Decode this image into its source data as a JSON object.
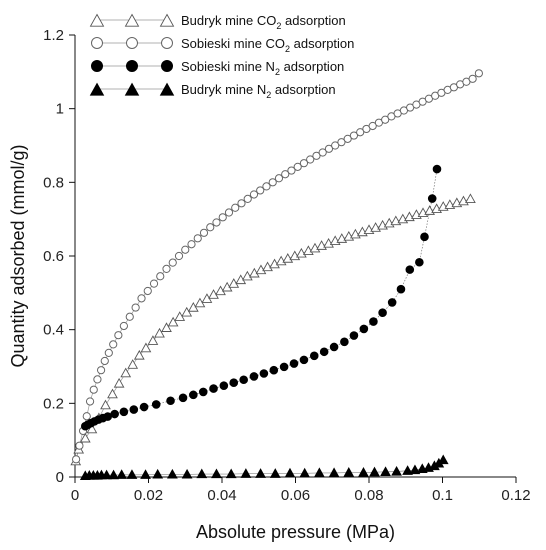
{
  "chart_data": {
    "type": "scatter",
    "title": "",
    "xlabel": "Absolute pressure (MPa)",
    "ylabel": "Quantity adsorbed (mmol/g)",
    "xlim": [
      0,
      0.12
    ],
    "ylim": [
      0,
      1.2
    ],
    "xticks": [
      0,
      0.02,
      0.04,
      0.06,
      0.08,
      0.1,
      0.12
    ],
    "xtick_labels": [
      "0",
      "0.02",
      "0.04",
      "0.06",
      "0.08",
      "0.1",
      "0.12"
    ],
    "yticks": [
      0,
      0.2,
      0.4,
      0.6,
      0.8,
      1,
      1.2
    ],
    "ytick_labels": [
      "0",
      "0.2",
      "0.4",
      "0.6",
      "0.8",
      "1",
      "1.2"
    ],
    "grid": false,
    "legend_position": "top-left",
    "series": [
      {
        "name": "Budryk mine CO2 adsorption",
        "legend_main": "Budryk mine CO",
        "legend_sub": "2",
        "legend_tail": " adsorption",
        "marker": "triangle-open",
        "points": [
          [
            0.0002,
            0.043
          ],
          [
            0.001,
            0.075
          ],
          [
            0.0028,
            0.105
          ],
          [
            0.0046,
            0.13
          ],
          [
            0.0065,
            0.16
          ],
          [
            0.0083,
            0.195
          ],
          [
            0.0102,
            0.225
          ],
          [
            0.012,
            0.254
          ],
          [
            0.0138,
            0.282
          ],
          [
            0.0157,
            0.305
          ],
          [
            0.0175,
            0.33
          ],
          [
            0.0193,
            0.35
          ],
          [
            0.0212,
            0.37
          ],
          [
            0.023,
            0.39
          ],
          [
            0.0249,
            0.405
          ],
          [
            0.0267,
            0.42
          ],
          [
            0.0285,
            0.435
          ],
          [
            0.0304,
            0.447
          ],
          [
            0.0322,
            0.46
          ],
          [
            0.034,
            0.472
          ],
          [
            0.0359,
            0.484
          ],
          [
            0.0377,
            0.495
          ],
          [
            0.0396,
            0.505
          ],
          [
            0.0414,
            0.515
          ],
          [
            0.0432,
            0.525
          ],
          [
            0.0451,
            0.535
          ],
          [
            0.0469,
            0.545
          ],
          [
            0.0488,
            0.553
          ],
          [
            0.0506,
            0.562
          ],
          [
            0.0524,
            0.57
          ],
          [
            0.0543,
            0.578
          ],
          [
            0.0561,
            0.586
          ],
          [
            0.0579,
            0.593
          ],
          [
            0.0598,
            0.6
          ],
          [
            0.0616,
            0.607
          ],
          [
            0.0635,
            0.614
          ],
          [
            0.0653,
            0.621
          ],
          [
            0.0671,
            0.628
          ],
          [
            0.069,
            0.634
          ],
          [
            0.0708,
            0.641
          ],
          [
            0.0726,
            0.647
          ],
          [
            0.0745,
            0.653
          ],
          [
            0.0763,
            0.659
          ],
          [
            0.0782,
            0.665
          ],
          [
            0.08,
            0.671
          ],
          [
            0.0818,
            0.677
          ],
          [
            0.0837,
            0.683
          ],
          [
            0.0855,
            0.689
          ],
          [
            0.0873,
            0.695
          ],
          [
            0.0892,
            0.7
          ],
          [
            0.091,
            0.706
          ],
          [
            0.0929,
            0.712
          ],
          [
            0.0947,
            0.717
          ],
          [
            0.0965,
            0.723
          ],
          [
            0.0984,
            0.728
          ],
          [
            0.1002,
            0.734
          ],
          [
            0.102,
            0.739
          ],
          [
            0.1039,
            0.744
          ],
          [
            0.1057,
            0.749
          ],
          [
            0.1076,
            0.755
          ]
        ]
      },
      {
        "name": "Sobieski mine CO2 adsorption",
        "legend_main": "Sobieski mine CO",
        "legend_sub": "2",
        "legend_tail": " adsorption",
        "marker": "circle-open",
        "points": [
          [
            0.0003,
            0.048
          ],
          [
            0.0012,
            0.085
          ],
          [
            0.0022,
            0.125
          ],
          [
            0.0032,
            0.165
          ],
          [
            0.0041,
            0.205
          ],
          [
            0.0051,
            0.237
          ],
          [
            0.0061,
            0.265
          ],
          [
            0.0071,
            0.29
          ],
          [
            0.0081,
            0.315
          ],
          [
            0.0092,
            0.337
          ],
          [
            0.0104,
            0.36
          ],
          [
            0.0118,
            0.385
          ],
          [
            0.0133,
            0.41
          ],
          [
            0.0149,
            0.435
          ],
          [
            0.0165,
            0.46
          ],
          [
            0.0181,
            0.485
          ],
          [
            0.0198,
            0.505
          ],
          [
            0.0215,
            0.525
          ],
          [
            0.0232,
            0.545
          ],
          [
            0.0249,
            0.565
          ],
          [
            0.0266,
            0.582
          ],
          [
            0.0283,
            0.6
          ],
          [
            0.03,
            0.617
          ],
          [
            0.0317,
            0.632
          ],
          [
            0.0334,
            0.648
          ],
          [
            0.0351,
            0.663
          ],
          [
            0.0368,
            0.678
          ],
          [
            0.0385,
            0.691
          ],
          [
            0.0402,
            0.705
          ],
          [
            0.0419,
            0.718
          ],
          [
            0.0436,
            0.731
          ],
          [
            0.0453,
            0.743
          ],
          [
            0.047,
            0.755
          ],
          [
            0.0487,
            0.767
          ],
          [
            0.0504,
            0.778
          ],
          [
            0.0521,
            0.789
          ],
          [
            0.0538,
            0.8
          ],
          [
            0.0555,
            0.811
          ],
          [
            0.0572,
            0.822
          ],
          [
            0.0589,
            0.832
          ],
          [
            0.0606,
            0.842
          ],
          [
            0.0623,
            0.852
          ],
          [
            0.064,
            0.862
          ],
          [
            0.0657,
            0.872
          ],
          [
            0.0674,
            0.881
          ],
          [
            0.0691,
            0.891
          ],
          [
            0.0708,
            0.9
          ],
          [
            0.0725,
            0.909
          ],
          [
            0.0742,
            0.918
          ],
          [
            0.0759,
            0.927
          ],
          [
            0.0776,
            0.936
          ],
          [
            0.0793,
            0.945
          ],
          [
            0.081,
            0.953
          ],
          [
            0.0827,
            0.962
          ],
          [
            0.0844,
            0.97
          ],
          [
            0.0861,
            0.979
          ],
          [
            0.0878,
            0.987
          ],
          [
            0.0895,
            0.995
          ],
          [
            0.0912,
            1.003
          ],
          [
            0.0929,
            1.011
          ],
          [
            0.0946,
            1.019
          ],
          [
            0.0963,
            1.027
          ],
          [
            0.098,
            1.035
          ],
          [
            0.0997,
            1.043
          ],
          [
            0.1014,
            1.051
          ],
          [
            0.1031,
            1.058
          ],
          [
            0.1048,
            1.066
          ],
          [
            0.1065,
            1.073
          ],
          [
            0.1082,
            1.081
          ],
          [
            0.1099,
            1.096
          ]
        ]
      },
      {
        "name": "Sobieski mine N2 adsorption",
        "legend_main": "Sobieski mine N",
        "legend_sub": "2",
        "legend_tail": " adsorption",
        "marker": "circle-filled",
        "points": [
          [
            0.0028,
            0.138
          ],
          [
            0.0035,
            0.142
          ],
          [
            0.0043,
            0.146
          ],
          [
            0.0053,
            0.151
          ],
          [
            0.0064,
            0.156
          ],
          [
            0.0076,
            0.16
          ],
          [
            0.0089,
            0.164
          ],
          [
            0.0108,
            0.171
          ],
          [
            0.0133,
            0.177
          ],
          [
            0.016,
            0.183
          ],
          [
            0.0188,
            0.19
          ],
          [
            0.0221,
            0.197
          ],
          [
            0.026,
            0.207
          ],
          [
            0.0294,
            0.215
          ],
          [
            0.0322,
            0.223
          ],
          [
            0.0349,
            0.231
          ],
          [
            0.0377,
            0.24
          ],
          [
            0.0405,
            0.248
          ],
          [
            0.0432,
            0.256
          ],
          [
            0.0459,
            0.264
          ],
          [
            0.0487,
            0.273
          ],
          [
            0.0514,
            0.281
          ],
          [
            0.0541,
            0.29
          ],
          [
            0.0569,
            0.299
          ],
          [
            0.0596,
            0.308
          ],
          [
            0.0623,
            0.318
          ],
          [
            0.0651,
            0.329
          ],
          [
            0.0678,
            0.34
          ],
          [
            0.0705,
            0.353
          ],
          [
            0.0733,
            0.367
          ],
          [
            0.0759,
            0.384
          ],
          [
            0.0786,
            0.402
          ],
          [
            0.0812,
            0.422
          ],
          [
            0.0837,
            0.446
          ],
          [
            0.0863,
            0.474
          ],
          [
            0.0887,
            0.51
          ],
          [
            0.0911,
            0.563
          ],
          [
            0.0937,
            0.583
          ],
          [
            0.0951,
            0.652
          ],
          [
            0.0972,
            0.756
          ],
          [
            0.0985,
            0.836
          ]
        ]
      },
      {
        "name": "Budryk mine N2 adsorption",
        "legend_main": "Budryk mine N",
        "legend_sub": "2",
        "legend_tail": " adsorption",
        "marker": "triangle-filled",
        "points": [
          [
            0.0028,
            0.003
          ],
          [
            0.0039,
            0.004
          ],
          [
            0.005,
            0.004
          ],
          [
            0.0061,
            0.004
          ],
          [
            0.0072,
            0.005
          ],
          [
            0.0086,
            0.005
          ],
          [
            0.0105,
            0.005
          ],
          [
            0.0127,
            0.006
          ],
          [
            0.0155,
            0.006
          ],
          [
            0.0192,
            0.006
          ],
          [
            0.0225,
            0.007
          ],
          [
            0.0265,
            0.007
          ],
          [
            0.0305,
            0.007
          ],
          [
            0.0345,
            0.008
          ],
          [
            0.0385,
            0.008
          ],
          [
            0.0425,
            0.008
          ],
          [
            0.0465,
            0.009
          ],
          [
            0.0505,
            0.009
          ],
          [
            0.0545,
            0.009
          ],
          [
            0.0585,
            0.01
          ],
          [
            0.0625,
            0.01
          ],
          [
            0.0665,
            0.011
          ],
          [
            0.0705,
            0.011
          ],
          [
            0.0745,
            0.012
          ],
          [
            0.0785,
            0.012
          ],
          [
            0.0815,
            0.013
          ],
          [
            0.0845,
            0.014
          ],
          [
            0.0875,
            0.015
          ],
          [
            0.0905,
            0.017
          ],
          [
            0.0925,
            0.019
          ],
          [
            0.0945,
            0.022
          ],
          [
            0.0962,
            0.025
          ],
          [
            0.0978,
            0.03
          ],
          [
            0.099,
            0.037
          ],
          [
            0.1002,
            0.046
          ]
        ]
      }
    ]
  }
}
